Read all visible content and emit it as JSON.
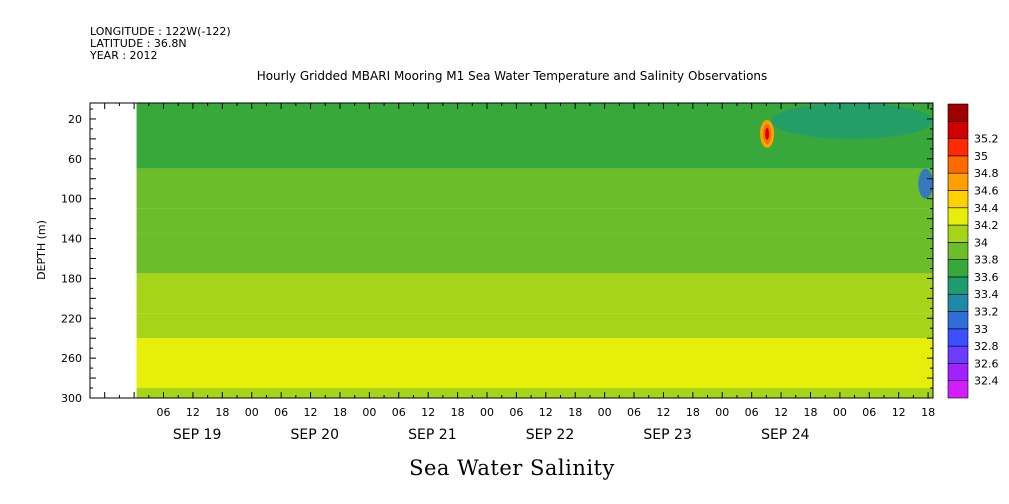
{
  "header": {
    "longitude": "LONGITUDE : 122W(-122)",
    "latitude": "LATITUDE : 36.8N",
    "year": "YEAR : 2012"
  },
  "chart_data": {
    "type": "heatmap",
    "title": "Hourly Gridded MBARI Mooring M1 Sea Water Temperature and Salinity Observations",
    "xlabel": "",
    "ylabel": "DEPTH (m)",
    "variable_label": "Sea Water Salinity",
    "x_hour_ticks": [
      "06",
      "12",
      "18",
      "00",
      "06",
      "12",
      "18",
      "00",
      "06",
      "12",
      "18",
      "00",
      "06",
      "12",
      "18",
      "00",
      "06",
      "12",
      "18",
      "00",
      "06",
      "12",
      "18",
      "00",
      "06",
      "12",
      "18"
    ],
    "x_day_labels": [
      "SEP 19",
      "SEP 20",
      "SEP 21",
      "SEP 22",
      "SEP 23",
      "SEP 24"
    ],
    "x_range_hours_from_sep19_00": [
      -9,
      163
    ],
    "data_start_hours_from_sep19_00": 0.5,
    "y_ticks": [
      20,
      60,
      100,
      140,
      180,
      220,
      260,
      300
    ],
    "ylim": [
      300,
      4
    ],
    "y_inverted": true,
    "colorbar": {
      "levels": [
        32.4,
        32.6,
        32.8,
        33,
        33.2,
        33.4,
        33.6,
        33.8,
        34,
        34.2,
        34.4,
        34.6,
        34.8,
        35,
        35.2
      ],
      "labels": [
        "32.4",
        "32.6",
        "32.8",
        "33",
        "33.2",
        "33.4",
        "33.6",
        "33.8",
        "34",
        "34.2",
        "34.4",
        "34.6",
        "34.8",
        "35",
        "35.2"
      ],
      "colors": [
        "#d21eff",
        "#a020ff",
        "#6a3cff",
        "#3a4fff",
        "#2e6ed6",
        "#1f8aa8",
        "#1f9c6e",
        "#39a83a",
        "#6bbd2a",
        "#a6d418",
        "#e6ee0a",
        "#ffd000",
        "#ffa000",
        "#ff6a00",
        "#ff2a00",
        "#d00000",
        "#a00000"
      ]
    },
    "depth_bands": [
      {
        "from": 4,
        "to": 70,
        "salinity": 33.7
      },
      {
        "from": 70,
        "to": 110,
        "salinity": 33.8
      },
      {
        "from": 110,
        "to": 135,
        "salinity": 33.85
      },
      {
        "from": 135,
        "to": 175,
        "salinity": 33.95
      },
      {
        "from": 175,
        "to": 215,
        "salinity": 34.05
      },
      {
        "from": 215,
        "to": 240,
        "salinity": 34.15
      },
      {
        "from": 240,
        "to": 290,
        "salinity": 34.3
      },
      {
        "from": 290,
        "to": 300,
        "salinity": 34.15
      }
    ],
    "features": [
      {
        "name": "surface low salinity",
        "hours": [
          130,
          163
        ],
        "depth": [
          4,
          40
        ],
        "salinity": 33.5
      },
      {
        "name": "high salinity spot",
        "hours": [
          128.5,
          129.8
        ],
        "depth": [
          25,
          45
        ],
        "salinity": 35.2
      },
      {
        "name": "low salinity spot",
        "hours": [
          160,
          163
        ],
        "depth": [
          70,
          100
        ],
        "salinity": 33.0
      }
    ]
  }
}
